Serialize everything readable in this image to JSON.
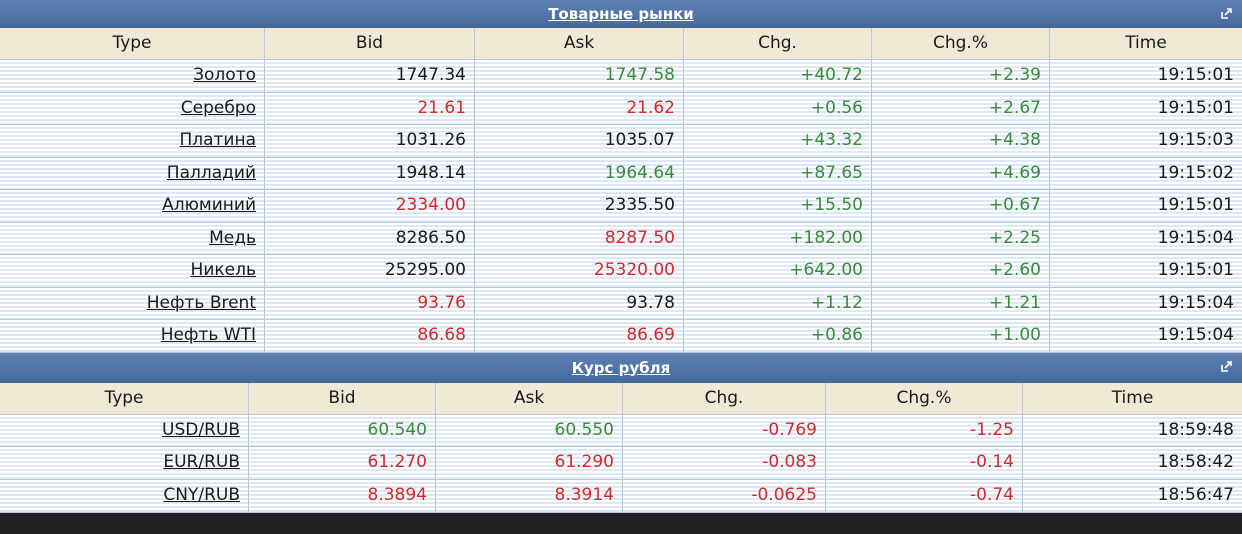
{
  "tables": [
    {
      "title": "Товарные рынки",
      "columns": [
        "Type",
        "Bid",
        "Ask",
        "Chg.",
        "Chg.%",
        "Time"
      ],
      "rows": [
        [
          "Золото",
          "1747.34",
          "1747.58",
          "+40.72",
          "+2.39",
          "19:15:01"
        ],
        [
          "Серебро",
          "21.61",
          "21.62",
          "+0.56",
          "+2.67",
          "19:15:01"
        ],
        [
          "Платина",
          "1031.26",
          "1035.07",
          "+43.32",
          "+4.38",
          "19:15:03"
        ],
        [
          "Палладий",
          "1948.14",
          "1964.64",
          "+87.65",
          "+4.69",
          "19:15:02"
        ],
        [
          "Алюминий",
          "2334.00",
          "2335.50",
          "+15.50",
          "+0.67",
          "19:15:01"
        ],
        [
          "Медь",
          "8286.50",
          "8287.50",
          "+182.00",
          "+2.25",
          "19:15:04"
        ],
        [
          "Никель",
          "25295.00",
          "25320.00",
          "+642.00",
          "+2.60",
          "19:15:01"
        ],
        [
          "Нефть Brent",
          "93.76",
          "93.78",
          "+1.12",
          "+1.21",
          "19:15:04"
        ],
        [
          "Нефть WTI",
          "86.68",
          "86.69",
          "+0.86",
          "+1.00",
          "19:15:04"
        ]
      ],
      "cell_colors": [
        [
          "black",
          "green",
          "green",
          "green"
        ],
        [
          "red",
          "red",
          "green",
          "green"
        ],
        [
          "black",
          "black",
          "green",
          "green"
        ],
        [
          "black",
          "green",
          "green",
          "green"
        ],
        [
          "red",
          "black",
          "green",
          "green"
        ],
        [
          "black",
          "red",
          "green",
          "green"
        ],
        [
          "black",
          "red",
          "green",
          "green"
        ],
        [
          "red",
          "black",
          "green",
          "green"
        ],
        [
          "red",
          "red",
          "green",
          "green"
        ]
      ]
    },
    {
      "title": "Курс рубля",
      "columns": [
        "Type",
        "Bid",
        "Ask",
        "Chg.",
        "Chg.%",
        "Time"
      ],
      "rows": [
        [
          "USD/RUB",
          "60.540",
          "60.550",
          "-0.769",
          "-1.25",
          "18:59:48"
        ],
        [
          "EUR/RUB",
          "61.270",
          "61.290",
          "-0.083",
          "-0.14",
          "18:58:42"
        ],
        [
          "CNY/RUB",
          "8.3894",
          "8.3914",
          "-0.0625",
          "-0.74",
          "18:56:47"
        ]
      ],
      "cell_colors": [
        [
          "green",
          "green",
          "red",
          "red"
        ],
        [
          "red",
          "red",
          "red",
          "red"
        ],
        [
          "red",
          "red",
          "red",
          "red"
        ]
      ]
    }
  ]
}
